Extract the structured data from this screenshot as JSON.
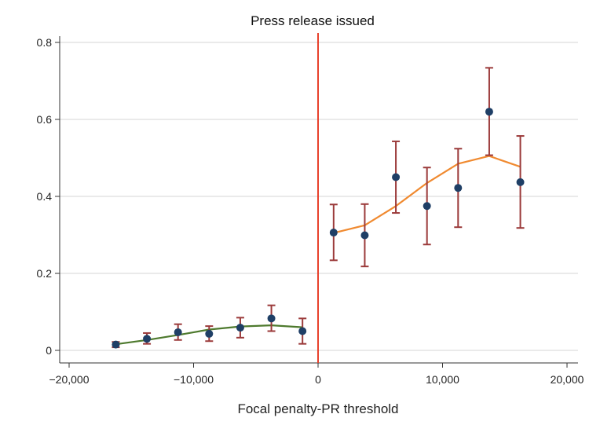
{
  "chart_data": {
    "type": "scatter",
    "title": "Press release issued",
    "xlabel": "Focal penalty-PR threshold",
    "ylabel": "",
    "xlim": [
      -20000,
      20000
    ],
    "ylim": [
      0,
      0.8
    ],
    "xticks": [
      -20000,
      -10000,
      0,
      10000,
      20000
    ],
    "xtick_labels": [
      "−20,000",
      "−10,000",
      "0",
      "10,000",
      "20,000"
    ],
    "yticks": [
      0,
      0.2,
      0.4,
      0.6,
      0.8
    ],
    "ytick_labels": [
      "0",
      "0.2",
      "0.4",
      "0.6",
      "0.8"
    ],
    "grid": "horizontal",
    "threshold": 0,
    "colors": {
      "points": "#1f3f66",
      "errorbars": "#9b3a3a",
      "fit_left": "#4e7a2e",
      "fit_right": "#f08a30",
      "threshold": "#e8412c",
      "grid": "#d4d4d4",
      "axis": "#333333"
    },
    "points": [
      {
        "x": -16250,
        "y": 0.015,
        "lo": 0.008,
        "hi": 0.022
      },
      {
        "x": -13750,
        "y": 0.03,
        "lo": 0.017,
        "hi": 0.045
      },
      {
        "x": -11250,
        "y": 0.047,
        "lo": 0.027,
        "hi": 0.068
      },
      {
        "x": -8750,
        "y": 0.043,
        "lo": 0.024,
        "hi": 0.063
      },
      {
        "x": -6250,
        "y": 0.059,
        "lo": 0.033,
        "hi": 0.085
      },
      {
        "x": -3750,
        "y": 0.083,
        "lo": 0.05,
        "hi": 0.117
      },
      {
        "x": -1250,
        "y": 0.05,
        "lo": 0.017,
        "hi": 0.083
      },
      {
        "x": 1250,
        "y": 0.306,
        "lo": 0.234,
        "hi": 0.379
      },
      {
        "x": 3750,
        "y": 0.299,
        "lo": 0.218,
        "hi": 0.38
      },
      {
        "x": 6250,
        "y": 0.45,
        "lo": 0.357,
        "hi": 0.543
      },
      {
        "x": 8750,
        "y": 0.375,
        "lo": 0.275,
        "hi": 0.475
      },
      {
        "x": 11250,
        "y": 0.422,
        "lo": 0.32,
        "hi": 0.524
      },
      {
        "x": 13750,
        "y": 0.62,
        "lo": 0.507,
        "hi": 0.734
      },
      {
        "x": 16250,
        "y": 0.437,
        "lo": 0.318,
        "hi": 0.557
      }
    ],
    "fit_left": {
      "x": [
        -16250,
        -13750,
        -11250,
        -8750,
        -6250,
        -3750,
        -1250
      ],
      "y": [
        0.016,
        0.027,
        0.04,
        0.054,
        0.062,
        0.065,
        0.06
      ]
    },
    "fit_right": {
      "x": [
        1250,
        3750,
        6250,
        8750,
        11250,
        13750,
        16250
      ],
      "y": [
        0.305,
        0.325,
        0.375,
        0.435,
        0.485,
        0.505,
        0.477
      ]
    }
  }
}
